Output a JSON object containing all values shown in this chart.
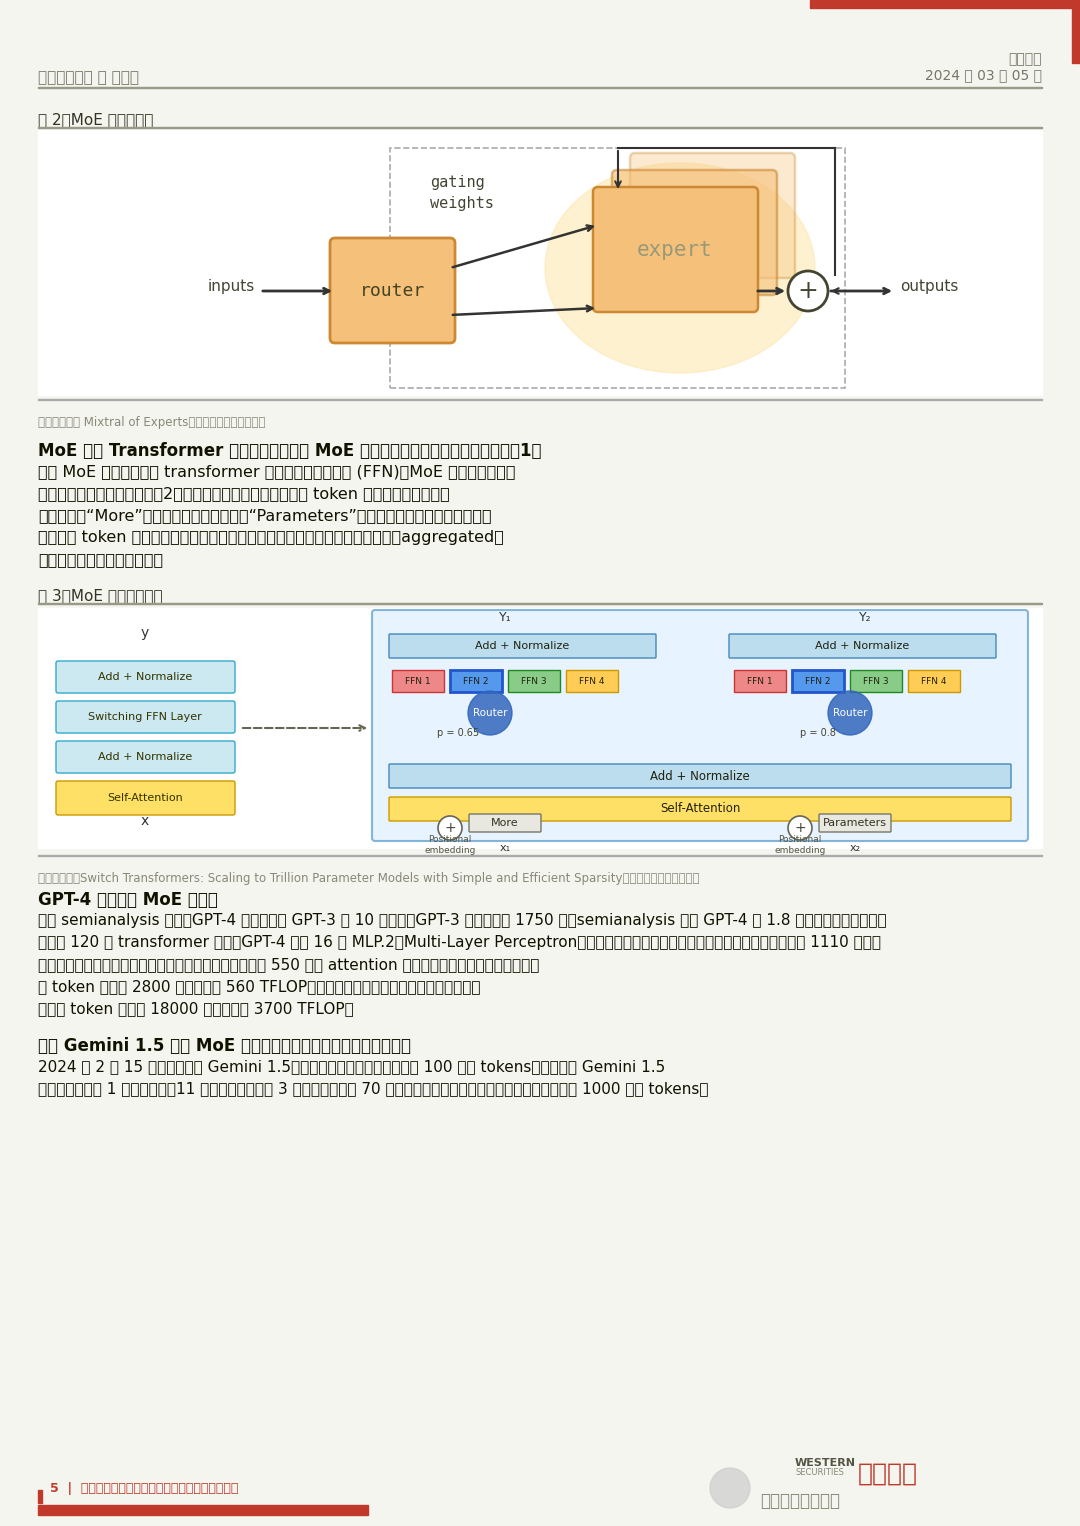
{
  "bg_color": "#f5f5f0",
  "header_line_color": "#c0392b",
  "left_label": "行业专题报告 ｜ 计算机",
  "right_label_top": "西部证券",
  "right_label_bottom": "2024 年 03 月 05 日",
  "fig2_title": "图 2：MoE 架构示意图",
  "fig3_title": "图 3：MoE 两个关键部分",
  "source1": "资料来源：《 Mixtral of Experts》、西部证券研究发中心",
  "source2": "资料来源：《Switch Transformers: Scaling to Trillion Parameter Models with Simple and Efficient Sparsity》、西部证券研究发中心",
  "para1_bold": "MoE 基于 Transformer 架构，主要由稀疏 MoE 层和门控网络这两个关键部分组成。1）",
  "para1_line1": "稀疏 MoE 层：取代传统 transformer 模型中的前馈网络层 (FFN)，MoE 层中每个专家本",
  "para1_line2": "身也是一个独立的神经网络；2）门控网络或路由：决定输入的 token 激活哪些专家。例如",
  "para1_line3": "在下图中，“More”被发送到第二个专家，而“Parameters”被发送到第一个专家，在某些情",
  "para1_line4": "况下单个 token 甚至可能被发送至多位专家。最后，所有专家的输出会被聚合（aggregated）",
  "para1_line5": "起来，形成最终的模型输出。",
  "para2_bold": "GPT-4 或已采用 MoE 架构。",
  "para2_line1": "根据 semianalysis 文章，GPT-4 参数规模是 GPT-3 的 10 倍以上。GPT-3 的参数量约 1750 亿，semianalysis 推测 GPT-4 约 1.8 万亿个参数，这些参数",
  "para2_line2": "分布在 120 个 transformer 层上。GPT-4 中有 16 个 MLP.2（Multi-Layer Perceptron，多层感知机）类型的专家，每个专家网络的参数大约为 1110 亿个，",
  "para2_line3": "每次前向传递中会调用其中的两个专家模型；此外，还有 550 亿个 attention 共享参数。这样推理时，每生成一",
  "para2_line4": "个 token 仅需约 2800 亿个参数和 560 TFLOP。而相比之下，如果使用稠密模型，每次生",
  "para2_line5": "成一个 token 需要约 18000 亿个参数和 3700 TFLOP。",
  "para3_bold": "谷歌 Gemini 1.5 采用 MoE 架构，可一次性、高效处理大量信息。",
  "para3_line1": "2024 年 2 月 15 日，谷歌发布 Gemini 1.5，宣布将上下文窗口长度扩展到 100 万个 tokens，也就是说 Gemini 1.5",
  "para3_line2": "可以一次性处理 1 小时的视频、11 小时的音频、超过 3 万行代码或超过 70 万字的代码库。谷歌甚在研究中成功测试了多达 1000 万个 tokens。",
  "footer_left": "5  |  请务必仔细阅读报告尾部的投资评级说明和声明"
}
